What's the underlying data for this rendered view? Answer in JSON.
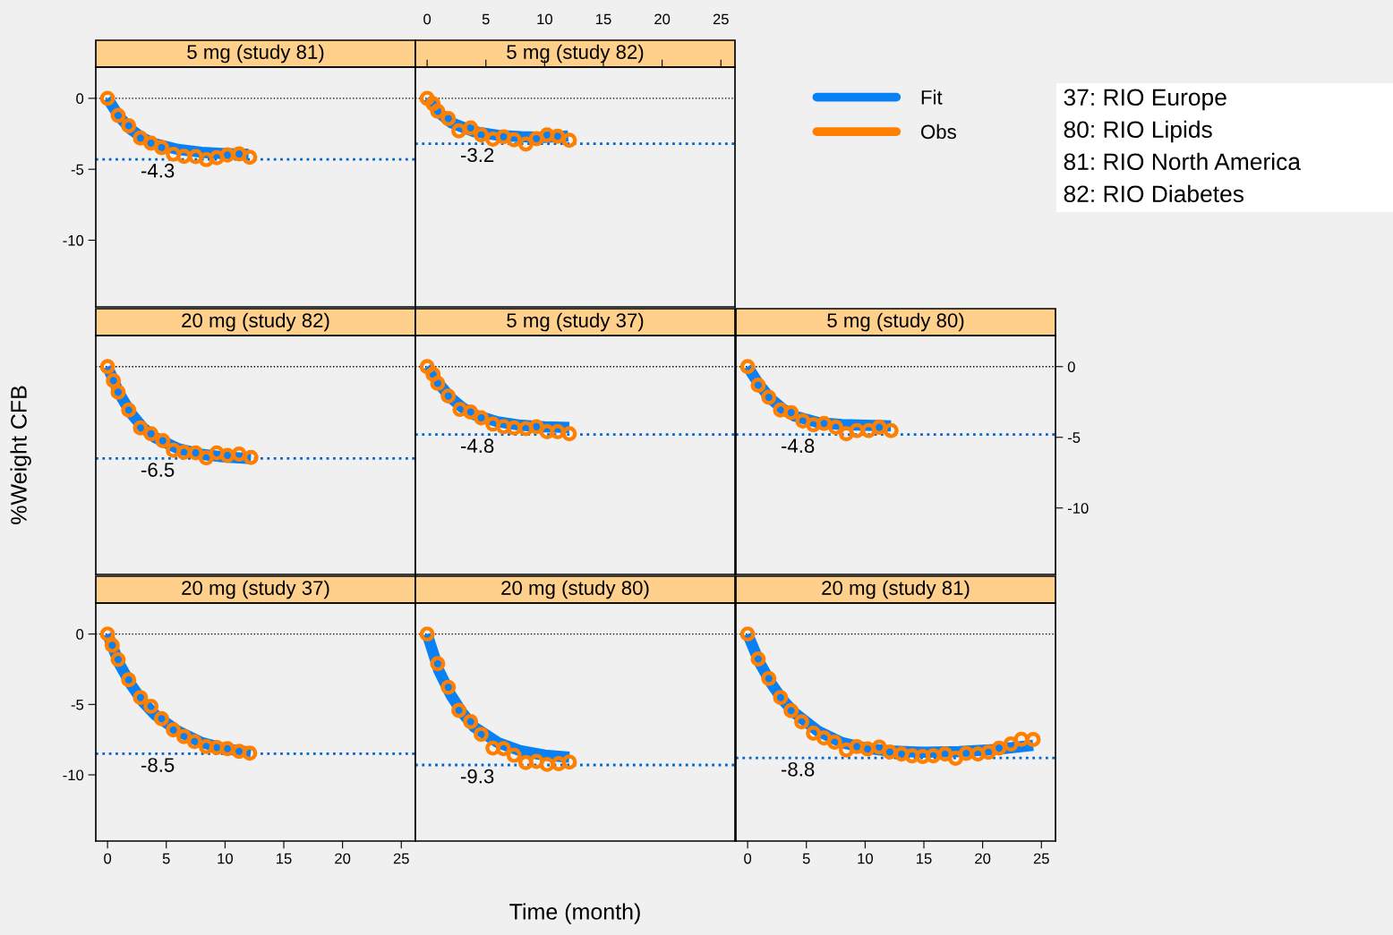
{
  "chart_data": [
    {
      "type": "line",
      "title": "5 mg (study 81)",
      "xlim": [
        -1,
        26.2
      ],
      "xticks": [
        0,
        5,
        10,
        15,
        20,
        25
      ],
      "ylim": [
        -14.7,
        2.2
      ],
      "yticks": [
        0,
        -5,
        -10
      ],
      "tick_labels": "y",
      "series": [
        {
          "type": "line",
          "color": "#0a80f5",
          "x": [
            0,
            1,
            2,
            3,
            4,
            6,
            8,
            10,
            12
          ],
          "values": [
            0,
            -1.3,
            -2.2,
            -2.8,
            -3.2,
            -3.6,
            -3.8,
            -3.9,
            -3.95
          ]
        },
        {
          "type": "scatter",
          "marker": "circle",
          "color": "#ff8000",
          "x": [
            0,
            0.9,
            1.8,
            2.8,
            3.7,
            4.6,
            5.6,
            6.5,
            7.5,
            8.4,
            9.3,
            10.2,
            11.2,
            12.1
          ],
          "values": [
            0,
            -1.21,
            -1.93,
            -2.8,
            -3.16,
            -3.47,
            -3.94,
            -4.09,
            -4.11,
            -4.32,
            -4.19,
            -4.0,
            -3.92,
            -4.15
          ]
        }
      ],
      "ref_lines": [
        {
          "axis": "y",
          "value": 0,
          "color": "#000000",
          "line_style": "dotted"
        },
        {
          "axis": "y",
          "value": -4.3,
          "label": "-4.3",
          "color": "#0066cc",
          "line_style": "dotted"
        }
      ]
    },
    {
      "type": "line",
      "title": "5 mg (study 82)",
      "xlim": [
        -1,
        26.2
      ],
      "xticks": [
        0,
        5,
        10,
        15,
        20,
        25
      ],
      "ylim": [
        -14.7,
        2.2
      ],
      "yticks": [
        0,
        -5,
        -10
      ],
      "tick_labels": "x",
      "legend": "right",
      "series": [
        {
          "type": "line",
          "name": "Fit",
          "color": "#0a80f5",
          "x": [
            0,
            1,
            2,
            4,
            6,
            8,
            10,
            12
          ],
          "values": [
            0,
            -1.0,
            -1.7,
            -2.35,
            -2.6,
            -2.7,
            -2.75,
            -2.65
          ]
        },
        {
          "type": "scatter",
          "name": "Obs",
          "marker": "circle",
          "color": "#ff8000",
          "x": [
            0,
            0.5,
            0.9,
            1.8,
            2.7,
            3.7,
            4.6,
            5.6,
            6.5,
            7.4,
            8.4,
            9.3,
            10.2,
            11.1,
            12.1
          ],
          "values": [
            0,
            -0.38,
            -0.91,
            -1.42,
            -2.29,
            -2.08,
            -2.58,
            -2.88,
            -2.71,
            -2.92,
            -3.22,
            -2.84,
            -2.58,
            -2.67,
            -2.95
          ]
        }
      ],
      "ref_lines": [
        {
          "axis": "y",
          "value": 0,
          "color": "#000000",
          "line_style": "dotted"
        },
        {
          "axis": "y",
          "value": -3.2,
          "label": "-3.2",
          "color": "#0066cc",
          "line_style": "dotted"
        }
      ]
    },
    {
      "type": "line",
      "title": "20 mg (study 82)",
      "ylabel": "%Weight CFB",
      "xlim": [
        -1,
        26.2
      ],
      "xticks": [
        0,
        5,
        10,
        15,
        20,
        25
      ],
      "ylim": [
        -14.7,
        2.2
      ],
      "yticks": [
        0,
        -5,
        -10
      ],
      "tick_labels": false,
      "series": [
        {
          "type": "line",
          "color": "#0a80f5",
          "x": [
            0,
            1,
            2,
            3,
            4,
            6,
            8,
            10,
            12.2
          ],
          "values": [
            0,
            -1.9,
            -3.3,
            -4.3,
            -5.0,
            -5.8,
            -6.2,
            -6.4,
            -6.5
          ]
        },
        {
          "type": "scatter",
          "marker": "circle",
          "color": "#ff8000",
          "x": [
            0,
            0.5,
            0.9,
            1.8,
            2.8,
            3.7,
            4.7,
            5.6,
            6.5,
            7.5,
            8.4,
            9.3,
            10.2,
            11.2,
            12.2
          ],
          "values": [
            0,
            -0.99,
            -1.81,
            -3.07,
            -4.34,
            -4.75,
            -5.24,
            -5.92,
            -6.06,
            -6.1,
            -6.46,
            -6.1,
            -6.28,
            -6.19,
            -6.42
          ]
        }
      ],
      "ref_lines": [
        {
          "axis": "y",
          "value": 0,
          "color": "#000000",
          "line_style": "dotted"
        },
        {
          "axis": "y",
          "value": -6.5,
          "label": "-6.5",
          "color": "#0066cc",
          "line_style": "dotted"
        }
      ]
    },
    {
      "type": "line",
      "title": "5 mg (study 37)",
      "xlim": [
        -1,
        26.2
      ],
      "xticks": [
        0,
        5,
        10,
        15,
        20,
        25
      ],
      "ylim": [
        -14.7,
        2.2
      ],
      "yticks": [
        0,
        -5,
        -10
      ],
      "tick_labels": false,
      "series": [
        {
          "type": "line",
          "color": "#0a80f5",
          "x": [
            0,
            1,
            2,
            3,
            4,
            6,
            8,
            10,
            12.1
          ],
          "values": [
            0,
            -1.2,
            -2.2,
            -2.9,
            -3.4,
            -3.9,
            -4.15,
            -4.25,
            -4.3
          ]
        },
        {
          "type": "scatter",
          "marker": "circle",
          "color": "#ff8000",
          "x": [
            0,
            0.5,
            0.9,
            1.8,
            2.8,
            3.7,
            4.6,
            5.6,
            6.5,
            7.4,
            8.4,
            9.3,
            10.2,
            11.1,
            12.1
          ],
          "values": [
            0,
            -0.54,
            -1.18,
            -2.08,
            -3.03,
            -3.21,
            -3.62,
            -4.07,
            -4.25,
            -4.34,
            -4.39,
            -4.25,
            -4.61,
            -4.61,
            -4.75
          ]
        }
      ],
      "ref_lines": [
        {
          "axis": "y",
          "value": 0,
          "color": "#000000",
          "line_style": "dotted"
        },
        {
          "axis": "y",
          "value": -4.8,
          "label": "-4.8",
          "color": "#0066cc",
          "line_style": "dotted"
        }
      ]
    },
    {
      "type": "line",
      "title": "5 mg (study 80)",
      "xlim": [
        -1,
        26.2
      ],
      "xticks": [
        0,
        5,
        10,
        15,
        20,
        25
      ],
      "ylim": [
        -14.7,
        2.2
      ],
      "yticks": [
        0,
        -5,
        -10
      ],
      "tick_labels": "y",
      "series": [
        {
          "type": "line",
          "color": "#0a80f5",
          "x": [
            0,
            1,
            2,
            3,
            4,
            6,
            8,
            10,
            12.2
          ],
          "values": [
            0,
            -1.3,
            -2.3,
            -3.0,
            -3.5,
            -3.95,
            -4.1,
            -4.15,
            -4.2
          ]
        },
        {
          "type": "scatter",
          "marker": "circle",
          "color": "#ff8000",
          "x": [
            0,
            0.9,
            1.8,
            2.8,
            3.7,
            4.7,
            5.6,
            6.5,
            7.5,
            8.4,
            9.3,
            10.3,
            11.2,
            12.2
          ],
          "values": [
            0,
            -1.31,
            -2.17,
            -3.07,
            -3.25,
            -3.84,
            -4.11,
            -4.02,
            -4.29,
            -4.75,
            -4.52,
            -4.52,
            -4.29,
            -4.52
          ]
        }
      ],
      "ref_lines": [
        {
          "axis": "y",
          "value": 0,
          "color": "#000000",
          "line_style": "dotted"
        },
        {
          "axis": "y",
          "value": -4.8,
          "label": "-4.8",
          "color": "#0066cc",
          "line_style": "dotted"
        }
      ]
    },
    {
      "type": "line",
      "title": "20 mg (study 37)",
      "xlim": [
        -1,
        26.2
      ],
      "xticks": [
        0,
        5,
        10,
        15,
        20,
        25
      ],
      "ylim": [
        -14.7,
        2.2
      ],
      "yticks": [
        0,
        -5,
        -10
      ],
      "series": [
        {
          "type": "line",
          "color": "#0a80f5",
          "x": [
            0,
            1,
            2,
            3,
            4,
            6,
            8,
            10,
            12.2
          ],
          "values": [
            0,
            -2.1,
            -3.6,
            -4.8,
            -5.7,
            -6.9,
            -7.7,
            -8.15,
            -8.4
          ]
        },
        {
          "type": "scatter",
          "marker": "circle",
          "color": "#ff8000",
          "x": [
            0,
            0.4,
            0.9,
            1.8,
            2.8,
            3.7,
            4.6,
            5.6,
            6.5,
            7.4,
            8.4,
            9.3,
            10.2,
            11.2,
            12.1
          ],
          "values": [
            0,
            -0.8,
            -1.81,
            -3.25,
            -4.51,
            -5.13,
            -6.01,
            -6.81,
            -7.28,
            -7.64,
            -7.99,
            -8.06,
            -8.14,
            -8.33,
            -8.46
          ]
        }
      ],
      "ref_lines": [
        {
          "axis": "y",
          "value": 0,
          "color": "#000000",
          "line_style": "dotted"
        },
        {
          "axis": "y",
          "value": -8.5,
          "label": "-8.5",
          "color": "#0066cc",
          "line_style": "dotted"
        }
      ]
    },
    {
      "type": "line",
      "title": "20 mg (study 80)",
      "xlabel": "Time (month)",
      "xlim": [
        -1,
        26.2
      ],
      "xticks": [
        0,
        5,
        10,
        15,
        20,
        25
      ],
      "ylim": [
        -14.7,
        2.2
      ],
      "yticks": [
        0,
        -5,
        -10
      ],
      "tick_labels": false,
      "series": [
        {
          "type": "line",
          "color": "#0a80f5",
          "x": [
            0,
            1,
            2,
            3,
            4,
            6,
            8,
            10,
            12.1
          ],
          "values": [
            0,
            -2.6,
            -4.3,
            -5.6,
            -6.6,
            -7.7,
            -8.3,
            -8.6,
            -8.75
          ]
        },
        {
          "type": "scatter",
          "marker": "circle",
          "color": "#ff8000",
          "x": [
            0,
            0.9,
            1.8,
            2.7,
            3.7,
            4.6,
            5.6,
            6.5,
            7.4,
            8.4,
            9.3,
            10.2,
            11.2,
            12.1
          ],
          "values": [
            0,
            -2.11,
            -3.78,
            -5.42,
            -6.22,
            -7.13,
            -8.1,
            -8.14,
            -8.61,
            -9.13,
            -9.05,
            -9.26,
            -9.2,
            -9.09
          ]
        }
      ],
      "ref_lines": [
        {
          "axis": "y",
          "value": 0,
          "color": "#000000",
          "line_style": "dotted"
        },
        {
          "axis": "y",
          "value": -9.3,
          "label": "-9.3",
          "color": "#0066cc",
          "line_style": "dotted"
        }
      ]
    },
    {
      "type": "line",
      "title": "20 mg (study 81)",
      "xlim": [
        -1,
        26.2
      ],
      "xticks": [
        0,
        5,
        10,
        15,
        20,
        25
      ],
      "ylim": [
        -14.7,
        2.2
      ],
      "yticks": [
        0,
        -5,
        -10
      ],
      "tick_labels": "x",
      "series": [
        {
          "type": "line",
          "color": "#0a80f5",
          "x": [
            0,
            1,
            2,
            3,
            4,
            6,
            8,
            10,
            12,
            15,
            18,
            21,
            24.3
          ],
          "values": [
            0,
            -2.0,
            -3.5,
            -4.7,
            -5.6,
            -6.9,
            -7.7,
            -8.1,
            -8.3,
            -8.4,
            -8.35,
            -8.2,
            -7.9
          ]
        },
        {
          "type": "scatter",
          "marker": "circle",
          "color": "#ff8000",
          "x": [
            0,
            0.9,
            1.8,
            2.8,
            3.7,
            4.6,
            5.6,
            6.5,
            7.4,
            8.4,
            9.3,
            10.2,
            11.2,
            12.1,
            13.1,
            14.0,
            14.9,
            15.8,
            16.8,
            17.7,
            18.6,
            19.6,
            20.5,
            21.4,
            22.4,
            23.3,
            24.3
          ],
          "values": [
            0,
            -1.77,
            -3.16,
            -4.51,
            -5.44,
            -6.24,
            -7.04,
            -7.38,
            -7.68,
            -8.23,
            -7.99,
            -8.16,
            -8.02,
            -8.38,
            -8.52,
            -8.65,
            -8.69,
            -8.65,
            -8.52,
            -8.82,
            -8.48,
            -8.52,
            -8.4,
            -8.1,
            -7.81,
            -7.47,
            -7.49
          ]
        }
      ],
      "ref_lines": [
        {
          "axis": "y",
          "value": 0,
          "color": "#000000",
          "line_style": "dotted"
        },
        {
          "axis": "y",
          "value": -8.8,
          "label": "-8.8",
          "color": "#0066cc",
          "line_style": "dotted"
        }
      ]
    },
    {
      "type": "other",
      "annotations": [
        "37: RIO Europe",
        "80: RIO Lipids",
        "81: RIO North America",
        "82: RIO Diabetes"
      ]
    }
  ]
}
